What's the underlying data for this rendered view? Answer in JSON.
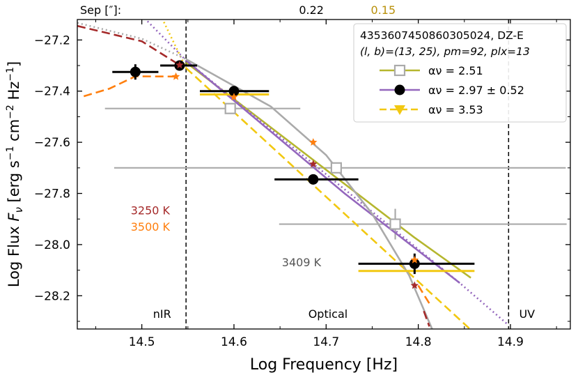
{
  "chart_data": {
    "type": "scatter",
    "xlabel": "Log Frequency [Hz]",
    "ylabel_prefix": "Log Flux ",
    "ylabel_var": "F",
    "ylabel_sub": "ν",
    "ylabel_units_a": " [erg s",
    "ylabel_units_b": " cm",
    "ylabel_units_c": " Hz",
    "ylabel_units_d": "]",
    "ylabel_exp1": "−1",
    "ylabel_exp2": "−2",
    "ylabel_exp3": "−1",
    "xlim": [
      14.43,
      14.965
    ],
    "ylim": [
      -28.33,
      -27.12
    ],
    "xticks": [
      14.5,
      14.6,
      14.7,
      14.8,
      14.9
    ],
    "xticklabels": [
      "14.5",
      "14.6",
      "14.7",
      "14.8",
      "14.9"
    ],
    "yticks": [
      -27.2,
      -27.4,
      -27.6,
      -27.8,
      -28.0,
      -28.2
    ],
    "yticklabels": [
      "−27.2",
      "−27.4",
      "−27.6",
      "−27.8",
      "−28.0",
      "−28.2"
    ],
    "top_label": "Sep [″]:",
    "top_values": [
      {
        "x": 14.684,
        "label": "0.22",
        "color": "#000000"
      },
      {
        "x": 14.762,
        "label": "0.15",
        "color": "#b8900a"
      }
    ],
    "vlines": [
      14.548,
      14.898
    ],
    "regions": [
      {
        "label": "nIR",
        "x": 14.522
      },
      {
        "label": "Optical",
        "x": 14.702
      },
      {
        "label": "UV",
        "x": 14.918
      }
    ],
    "region_label_y": -28.27,
    "temp_labels": [
      {
        "label": "3250 K",
        "color": "#a52a2a",
        "x": 14.488,
        "y": -27.866
      },
      {
        "label": "3500 K",
        "color": "#ff7f0e",
        "x": 14.488,
        "y": -27.929
      },
      {
        "label": "3409 K",
        "color": "#555555",
        "x": 14.652,
        "y": -28.068
      }
    ],
    "legend": {
      "title_line1": "4353607450860305024, DZ-E",
      "title_line2": "(l, b)=(13, 25), pm=92, plx=13",
      "entries": [
        {
          "label": "αν = 2.51",
          "color": "#b5b62e",
          "marker": "square"
        },
        {
          "label": "αν = 2.97 ± 0.52",
          "color": "#9467bd",
          "marker": "circle"
        },
        {
          "label": "αν = 3.53",
          "color": "#f2c811",
          "marker": "triangle"
        }
      ]
    },
    "series": [
      {
        "name": "Gray data",
        "color": "#aaaaaa",
        "marker": "square",
        "points": [
          {
            "x": 14.596,
            "y": -27.468,
            "xerr_lo": 0.136,
            "xerr_hi": 0.076,
            "yerr": 0.02
          },
          {
            "x": 14.711,
            "y": -27.7,
            "xerr_lo": 0.241,
            "xerr_hi": 0.249,
            "yerr": 0.02
          },
          {
            "x": 14.775,
            "y": -27.92,
            "xerr_lo": 0.126,
            "xerr_hi": 0.186,
            "yerr": 0.06
          }
        ]
      },
      {
        "name": "Black data",
        "color": "#000000",
        "marker": "circle",
        "points": [
          {
            "x": 14.493,
            "y": -27.325,
            "xerr_lo": 0.025,
            "xerr_hi": 0.025,
            "yerr": 0.03
          },
          {
            "x": 14.541,
            "y": -27.3,
            "xerr_lo": 0.021,
            "xerr_hi": 0.019,
            "yerr": 0.02
          },
          {
            "x": 14.6,
            "y": -27.4,
            "xerr_lo": 0.037,
            "xerr_hi": 0.038,
            "yerr": 0.02
          },
          {
            "x": 14.686,
            "y": -27.745,
            "xerr_lo": 0.042,
            "xerr_hi": 0.049,
            "yerr": 0.02
          },
          {
            "x": 14.796,
            "y": -28.075,
            "xerr_lo": 0.061,
            "xerr_hi": 0.065,
            "yerr": 0.04
          }
        ]
      },
      {
        "name": "Yellow bars",
        "color": "#f2c811",
        "segments": [
          {
            "x0": 14.563,
            "x1": 14.638,
            "y": -27.413
          },
          {
            "x0": 14.735,
            "x1": 14.861,
            "y": -28.103
          }
        ]
      },
      {
        "name": "3250 K model stars",
        "color": "#a52a2a",
        "points": [
          {
            "x": 14.541,
            "y": -27.298
          },
          {
            "x": 14.686,
            "y": -27.685
          },
          {
            "x": 14.796,
            "y": -28.16
          }
        ]
      },
      {
        "name": "3500 K model stars",
        "color": "#ff7f0e",
        "points": [
          {
            "x": 14.537,
            "y": -27.343
          },
          {
            "x": 14.6,
            "y": -27.423
          },
          {
            "x": 14.686,
            "y": -27.6
          },
          {
            "x": 14.796,
            "y": -28.06
          }
        ]
      },
      {
        "name": "fit 2.51",
        "color": "#b5b62e",
        "style": "solid",
        "points": [
          {
            "x": 14.548,
            "y": -27.288
          },
          {
            "x": 14.795,
            "y": -27.97
          },
          {
            "x": 14.857,
            "y": -28.13
          }
        ]
      },
      {
        "name": "fit 2.97",
        "color": "#9467bd",
        "style": "solid",
        "points": [
          {
            "x": 14.548,
            "y": -27.28
          },
          {
            "x": 14.72,
            "y": -27.8
          },
          {
            "x": 14.845,
            "y": -28.15
          }
        ]
      },
      {
        "name": "fit 2.97 extension",
        "color": "#9467bd",
        "style": "dotted",
        "points": [
          {
            "x": 14.503,
            "y": -27.115
          },
          {
            "x": 14.548,
            "y": -27.28
          },
          {
            "x": 14.845,
            "y": -28.15
          },
          {
            "x": 14.898,
            "y": -28.315
          }
        ]
      },
      {
        "name": "fit 3.53",
        "color": "#f2c811",
        "style": "dashed",
        "points": [
          {
            "x": 14.548,
            "y": -27.31
          },
          {
            "x": 14.856,
            "y": -28.33
          }
        ]
      },
      {
        "name": "fit 3.53 extension",
        "color": "#f2c811",
        "style": "dotted",
        "points": [
          {
            "x": 14.522,
            "y": -27.115
          },
          {
            "x": 14.548,
            "y": -27.31
          }
        ]
      },
      {
        "name": "3409 K blackbody",
        "color": "#aaaaaa",
        "style": "solid",
        "points": [
          {
            "x": 14.548,
            "y": -27.275
          },
          {
            "x": 14.64,
            "y": -27.46
          },
          {
            "x": 14.7,
            "y": -27.65
          },
          {
            "x": 14.75,
            "y": -27.88
          },
          {
            "x": 14.79,
            "y": -28.12
          },
          {
            "x": 14.815,
            "y": -28.33
          }
        ]
      },
      {
        "name": "3409 K blackbody extension",
        "color": "#aaaaaa",
        "style": "dotted",
        "points": [
          {
            "x": 14.43,
            "y": -27.133
          },
          {
            "x": 14.5,
            "y": -27.195
          },
          {
            "x": 14.548,
            "y": -27.275
          }
        ]
      },
      {
        "name": "3250 K model curve",
        "color": "#a52a2a",
        "style": "dashed",
        "points": [
          {
            "x": 14.43,
            "y": -27.145
          },
          {
            "x": 14.5,
            "y": -27.205
          },
          {
            "x": 14.541,
            "y": -27.298
          }
        ]
      },
      {
        "name": "3250 K model curve tail",
        "color": "#a52a2a",
        "style": "dashed",
        "points": [
          {
            "x": 14.806,
            "y": -28.26
          },
          {
            "x": 14.812,
            "y": -28.32
          }
        ]
      },
      {
        "name": "3500 K model curve",
        "color": "#ff7f0e",
        "style": "dashed",
        "points": [
          {
            "x": 14.437,
            "y": -27.42
          },
          {
            "x": 14.465,
            "y": -27.39
          },
          {
            "x": 14.493,
            "y": -27.342
          },
          {
            "x": 14.537,
            "y": -27.343
          }
        ]
      },
      {
        "name": "3500 K model curve tail",
        "color": "#ff7f0e",
        "style": "dashed",
        "points": [
          {
            "x": 14.8,
            "y": -28.16
          },
          {
            "x": 14.812,
            "y": -28.23
          }
        ]
      }
    ]
  }
}
